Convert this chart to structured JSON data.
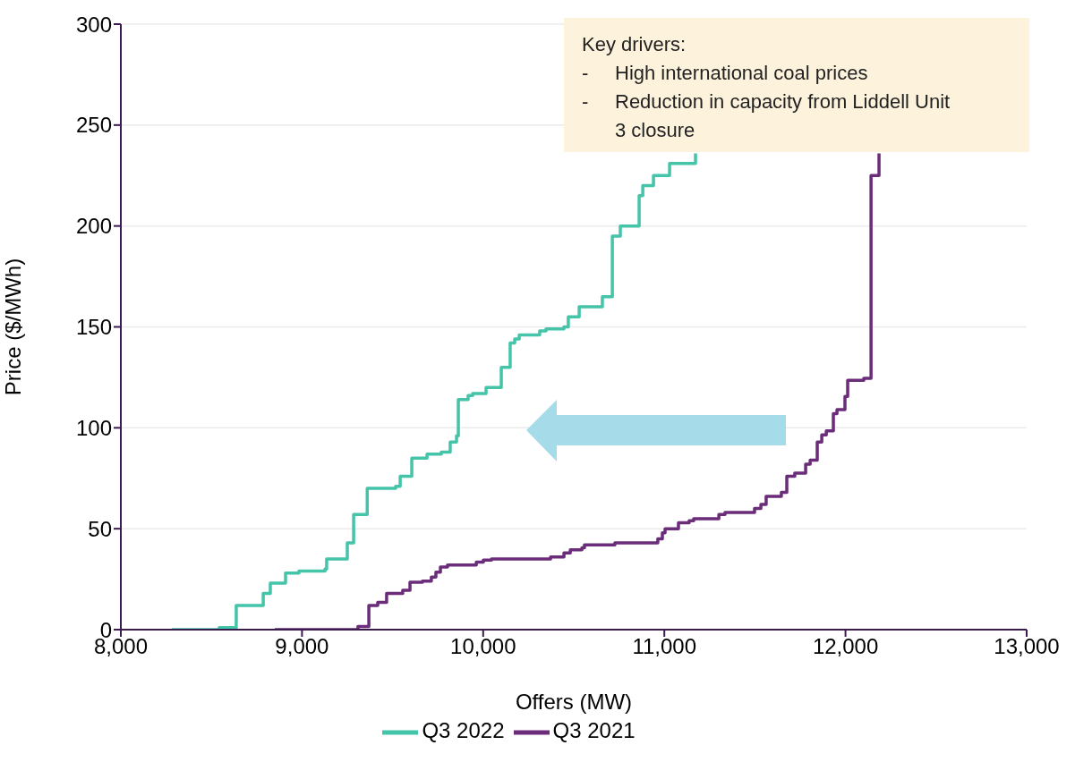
{
  "chart_data": {
    "type": "step",
    "xlabel": "Offers (MW)",
    "ylabel": "Price ($/MWh)",
    "xlim": [
      8000,
      13000
    ],
    "xticks": [
      {
        "value": 8000,
        "label": "8,000"
      },
      {
        "value": 9000,
        "label": "9,000"
      },
      {
        "value": 10000,
        "label": "10,000"
      },
      {
        "value": 11000,
        "label": "11,000"
      },
      {
        "value": 12000,
        "label": "12,000"
      },
      {
        "value": 13000,
        "label": "13,000"
      }
    ],
    "ylim": [
      0,
      300
    ],
    "yticks": [
      0,
      50,
      100,
      150,
      200,
      250,
      300
    ],
    "grid": "y",
    "legend": "bottom",
    "series": [
      {
        "name": "Q3 2022",
        "color": "#44c4a8",
        "x": [
          8282,
          8543,
          8637,
          8786,
          8825,
          8909,
          8983,
          9127,
          9136,
          9250,
          9285,
          9360,
          9517,
          9542,
          9606,
          9690,
          9769,
          9818,
          9853,
          9863,
          9917,
          9942,
          10016,
          10100,
          10149,
          10174,
          10199,
          10312,
          10347,
          10446,
          10470,
          10530,
          10658,
          10713,
          10757,
          10861,
          10881,
          10940,
          11029,
          11172
        ],
        "values": [
          0,
          1,
          12,
          18,
          23,
          28,
          29,
          30,
          35,
          43,
          57,
          70,
          71,
          76,
          85,
          87,
          88,
          93,
          96,
          114,
          116,
          117,
          120,
          130,
          142,
          144,
          146,
          148,
          149,
          150,
          155,
          160,
          165,
          195,
          200,
          215,
          220,
          225,
          231,
          236
        ]
      },
      {
        "name": "Q3 2021",
        "color": "#6b2c7a",
        "x": [
          8850,
          9309,
          9369,
          9418,
          9467,
          9556,
          9596,
          9665,
          9714,
          9739,
          9764,
          9803,
          9962,
          10001,
          10046,
          10372,
          10446,
          10481,
          10545,
          10559,
          10727,
          10964,
          10989,
          11004,
          11078,
          11137,
          11162,
          11301,
          11335,
          11498,
          11533,
          11562,
          11646,
          11676,
          11720,
          11780,
          11805,
          11844,
          11869,
          11894,
          11933,
          11953,
          11997,
          12012,
          12101,
          12141,
          12185
        ],
        "values": [
          0,
          1.5,
          12,
          13.5,
          18,
          19.5,
          23.5,
          24,
          26,
          28.5,
          31,
          32,
          33.5,
          34.5,
          35,
          36,
          38,
          39.5,
          40.5,
          42,
          43,
          45,
          48,
          50,
          53,
          54,
          55,
          57,
          58,
          60,
          62,
          66,
          68,
          76,
          77.5,
          82,
          84,
          93,
          96.5,
          98.5,
          107,
          109,
          115.5,
          123.5,
          124.5,
          225,
          236
        ]
      }
    ],
    "annotations": [
      "Key drivers:\n- High international coal prices\n- Reduction in capacity from Liddell Unit 3 closure"
    ]
  }
}
